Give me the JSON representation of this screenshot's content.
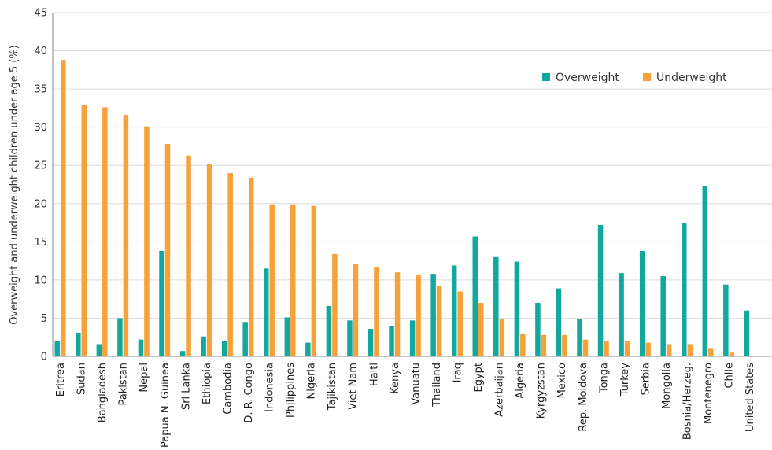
{
  "chart_data": {
    "type": "bar",
    "ylabel": "Overweight and underweight children under age 5 (%)",
    "xlabel": "",
    "ylim": [
      0,
      45
    ],
    "yticks": [
      0,
      5,
      10,
      15,
      20,
      25,
      30,
      35,
      40,
      45
    ],
    "grid": true,
    "legend_position": "top-right",
    "categories": [
      "Eritrea",
      "Sudan",
      "Bangladesh",
      "Pakistan",
      "Nepal",
      "Papua N. Guinea",
      "Sri Lanka",
      "Ethiopia",
      "Cambodia",
      "D. R. Congo",
      "Indonesia",
      "Philippines",
      "Nigeria",
      "Tajikistan",
      "Viet Nam",
      "Haiti",
      "Kenya",
      "Vanuatu",
      "Thailand",
      "Iraq",
      "Egypt",
      "Azerbaijan",
      "Algeria",
      "Kyrgyzstan",
      "Mexico",
      "Rep. Moldova",
      "Tonga",
      "Turkey",
      "Serbia",
      "Mongolia",
      "Bosnia/Herzeg.",
      "Montenegro",
      "Chile",
      "United States"
    ],
    "series": [
      {
        "name": "Overweight",
        "color": "#13a89e",
        "values": [
          2.0,
          3.1,
          1.6,
          5.0,
          2.2,
          13.8,
          0.7,
          2.6,
          2.0,
          4.5,
          11.5,
          5.1,
          1.8,
          6.6,
          4.7,
          3.6,
          4.0,
          4.7,
          10.8,
          11.9,
          15.7,
          13.0,
          12.4,
          7.0,
          8.9,
          4.9,
          17.2,
          10.9,
          13.8,
          10.5,
          17.4,
          22.3,
          9.4,
          6.0
        ]
      },
      {
        "name": "Underweight",
        "color": "#f6a13a",
        "values": [
          38.8,
          32.9,
          32.6,
          31.6,
          30.1,
          27.8,
          26.3,
          25.2,
          24.0,
          23.4,
          19.9,
          19.9,
          19.7,
          13.4,
          12.1,
          11.7,
          11.0,
          10.6,
          9.2,
          8.5,
          7.0,
          4.9,
          3.0,
          2.8,
          2.8,
          2.2,
          2.0,
          2.0,
          1.8,
          1.6,
          1.6,
          1.1,
          0.5,
          null
        ]
      }
    ]
  }
}
